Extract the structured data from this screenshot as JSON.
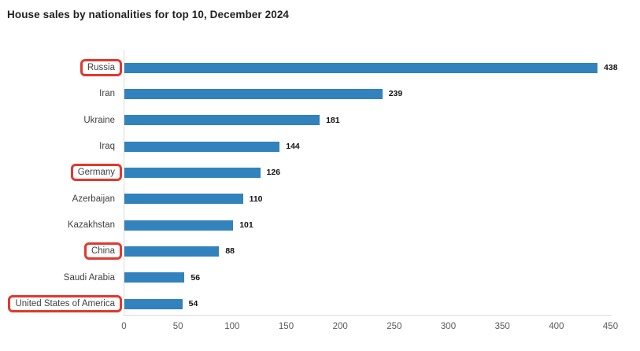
{
  "title": "House sales by nationalities for top 10, December 2024",
  "chart_data": {
    "type": "bar",
    "orientation": "horizontal",
    "title": "House sales by nationalities for top 10, December 2024",
    "categories": [
      "Russia",
      "Iran",
      "Ukraine",
      "Iraq",
      "Germany",
      "Azerbaijan",
      "Kazakhstan",
      "China",
      "Saudi Arabia",
      "United States of America"
    ],
    "values": [
      438,
      239,
      181,
      144,
      126,
      110,
      101,
      88,
      56,
      54
    ],
    "highlighted_categories": [
      "Russia",
      "Germany",
      "China",
      "United States of America"
    ],
    "value_labels_shown": true,
    "xlabel": "",
    "ylabel": "",
    "xlim": [
      0,
      450
    ],
    "x_ticks": [
      0,
      50,
      100,
      150,
      200,
      250,
      300,
      350,
      400,
      450
    ],
    "grid": false,
    "legend": false,
    "bar_color": "#3182bd",
    "highlight_box_color": "#e0392e"
  }
}
